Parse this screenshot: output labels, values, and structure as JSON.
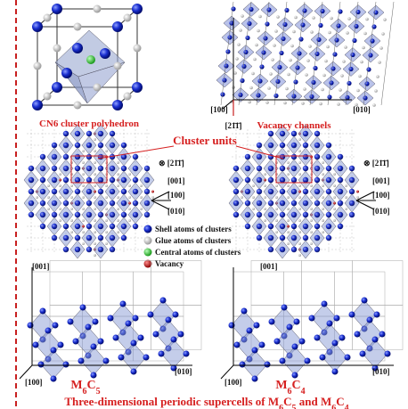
{
  "top_left": {
    "caption": "CN6 cluster polyhedron"
  },
  "top_right": {
    "axes": [
      "[100]",
      "[010]",
      "[21̄1̄]"
    ],
    "caption": "Vacancy channels"
  },
  "middle": {
    "title": "Cluster units",
    "left_axes": [
      "⊗ [21̄1̄]",
      "[001]",
      "[100]",
      "[010]"
    ],
    "right_axes": [
      "⊗ [21̄1̄]",
      "[001]",
      "[100]",
      "[010]"
    ]
  },
  "legend": [
    "Shell atoms of clusters",
    "Glue atoms of clusters",
    "Central atoms of clusters",
    "Vacancy"
  ],
  "bottom_left": {
    "axes": [
      "[001]",
      "[100]",
      "[010]"
    ],
    "formula": [
      "M",
      "6",
      "C",
      "5"
    ]
  },
  "bottom_right": {
    "axes": [
      "[001]",
      "[100]",
      "[010]"
    ],
    "formula": [
      "M",
      "6",
      "C",
      "4"
    ]
  },
  "caption": [
    "Three-dimensional periodic supercells of M",
    "6",
    "C",
    "5",
    " and M",
    "6",
    "C",
    "4"
  ]
}
